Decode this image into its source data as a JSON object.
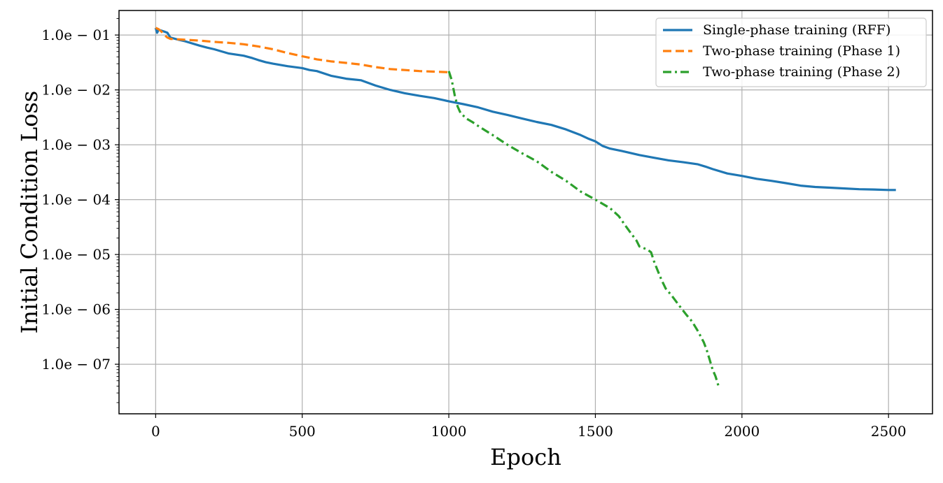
{
  "chart_data": {
    "type": "line",
    "title": "",
    "xlabel": "Epoch",
    "ylabel": "Initial Condition Loss",
    "yscale": "log",
    "xlim": [
      -125,
      2650
    ],
    "ylim": [
      1.25e-08,
      0.28
    ],
    "grid": true,
    "legend_position": "top-right",
    "x_ticks": [
      0,
      500,
      1000,
      1500,
      2000,
      2500
    ],
    "x_tick_labels": [
      "0",
      "500",
      "1000",
      "1500",
      "2000",
      "2500"
    ],
    "y_ticks": [
      0.1,
      0.01,
      0.001,
      0.0001,
      1e-05,
      1e-06,
      1e-07
    ],
    "y_tick_labels": [
      "1.0e − 01",
      "1.0e − 02",
      "1.0e − 03",
      "1.0e − 04",
      "1.0e − 05",
      "1.0e − 06",
      "1.0e − 07"
    ],
    "series": [
      {
        "name": "Single-phase training (RFF)",
        "color": "#1f77b4",
        "dash": "solid",
        "x": [
          0,
          5,
          10,
          20,
          30,
          40,
          50,
          75,
          100,
          150,
          175,
          200,
          250,
          300,
          330,
          350,
          375,
          400,
          450,
          500,
          525,
          550,
          600,
          650,
          700,
          750,
          800,
          850,
          900,
          950,
          1000,
          1050,
          1100,
          1150,
          1200,
          1250,
          1300,
          1350,
          1400,
          1450,
          1475,
          1500,
          1525,
          1550,
          1600,
          1650,
          1700,
          1750,
          1800,
          1850,
          1875,
          1900,
          1950,
          2000,
          2050,
          2100,
          2150,
          2200,
          2250,
          2300,
          2350,
          2400,
          2450,
          2500,
          2525
        ],
        "y": [
          0.135,
          0.11,
          0.125,
          0.12,
          0.115,
          0.11,
          0.09,
          0.083,
          0.077,
          0.064,
          0.059,
          0.055,
          0.046,
          0.042,
          0.038,
          0.035,
          0.032,
          0.03,
          0.027,
          0.025,
          0.023,
          0.022,
          0.018,
          0.016,
          0.015,
          0.012,
          0.01,
          0.0087,
          0.0078,
          0.0071,
          0.0062,
          0.0055,
          0.0048,
          0.004,
          0.0035,
          0.003,
          0.0026,
          0.0023,
          0.0019,
          0.0015,
          0.0013,
          0.00115,
          0.00095,
          0.00085,
          0.00075,
          0.00065,
          0.00058,
          0.00052,
          0.00048,
          0.00044,
          0.0004,
          0.00036,
          0.0003,
          0.00027,
          0.00024,
          0.00022,
          0.0002,
          0.00018,
          0.00017,
          0.000165,
          0.00016,
          0.000155,
          0.000153,
          0.00015,
          0.00015
        ]
      },
      {
        "name": "Two-phase training (Phase 1)",
        "color": "#ff7f0e",
        "dash": "dashed",
        "x": [
          0,
          10,
          20,
          30,
          40,
          50,
          100,
          150,
          200,
          250,
          300,
          350,
          400,
          450,
          500,
          550,
          600,
          650,
          700,
          750,
          800,
          850,
          900,
          950,
          1000
        ],
        "y": [
          0.135,
          0.128,
          0.115,
          0.1,
          0.09,
          0.085,
          0.082,
          0.079,
          0.075,
          0.072,
          0.068,
          0.062,
          0.055,
          0.047,
          0.041,
          0.036,
          0.033,
          0.031,
          0.029,
          0.026,
          0.024,
          0.023,
          0.022,
          0.0215,
          0.021
        ]
      },
      {
        "name": "Two-phase training (Phase 2)",
        "color": "#2ca02c",
        "dash": "dashdot",
        "x": [
          1000,
          1010,
          1020,
          1030,
          1040,
          1060,
          1080,
          1100,
          1150,
          1200,
          1250,
          1300,
          1350,
          1400,
          1450,
          1500,
          1550,
          1580,
          1600,
          1620,
          1640,
          1650,
          1660,
          1680,
          1690,
          1700,
          1710,
          1725,
          1740,
          1760,
          1775,
          1790,
          1810,
          1830,
          1850,
          1870,
          1880,
          1890,
          1900,
          1910,
          1920
        ],
        "y": [
          0.022,
          0.015,
          0.008,
          0.005,
          0.0038,
          0.003,
          0.0026,
          0.0022,
          0.0015,
          0.001,
          0.0007,
          0.0005,
          0.00032,
          0.00022,
          0.00014,
          0.0001,
          7e-05,
          5e-05,
          3.5e-05,
          2.5e-05,
          1.8e-05,
          1.4e-05,
          1.35e-05,
          1.2e-05,
          1.1e-05,
          7.5e-06,
          5.5e-06,
          3.5e-06,
          2.4e-06,
          1.8e-06,
          1.4e-06,
          1.1e-06,
          8e-07,
          6e-07,
          4e-07,
          2.5e-07,
          1.8e-07,
          1.2e-07,
          8e-08,
          6e-08,
          4e-08
        ]
      }
    ]
  }
}
